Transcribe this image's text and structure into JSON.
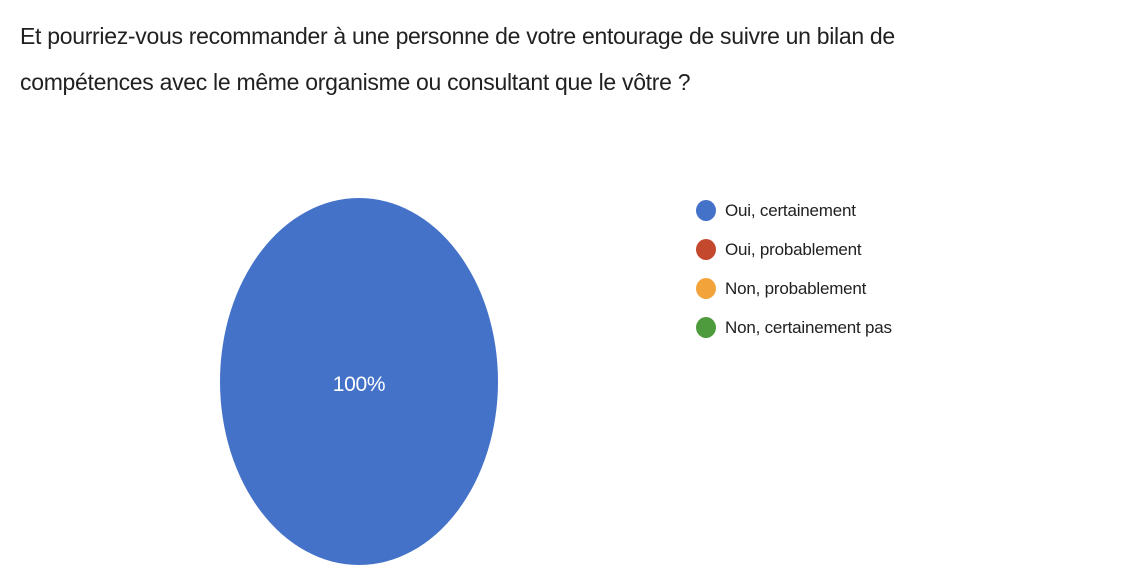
{
  "page": {
    "background_color": "#ffffff",
    "text_color": "#212121"
  },
  "chart_data": {
    "type": "pie",
    "title": "Et pourriez-vous recommander à une personne de votre entourage de suivre un bilan de compétences avec le même organisme ou consultant que le vôtre ?",
    "categories": [
      "Oui, certainement",
      "Oui, probablement",
      "Non, probablement",
      "Non, certainement pas"
    ],
    "values": [
      100,
      0,
      0,
      0
    ],
    "value_unit": "percent",
    "slice_label": "100%",
    "colors": [
      "#4572C9",
      "#C4482D",
      "#F2A43B",
      "#4E9B3D"
    ],
    "legend_position": "right",
    "slice_label_color": "#ffffff",
    "grid": false
  }
}
